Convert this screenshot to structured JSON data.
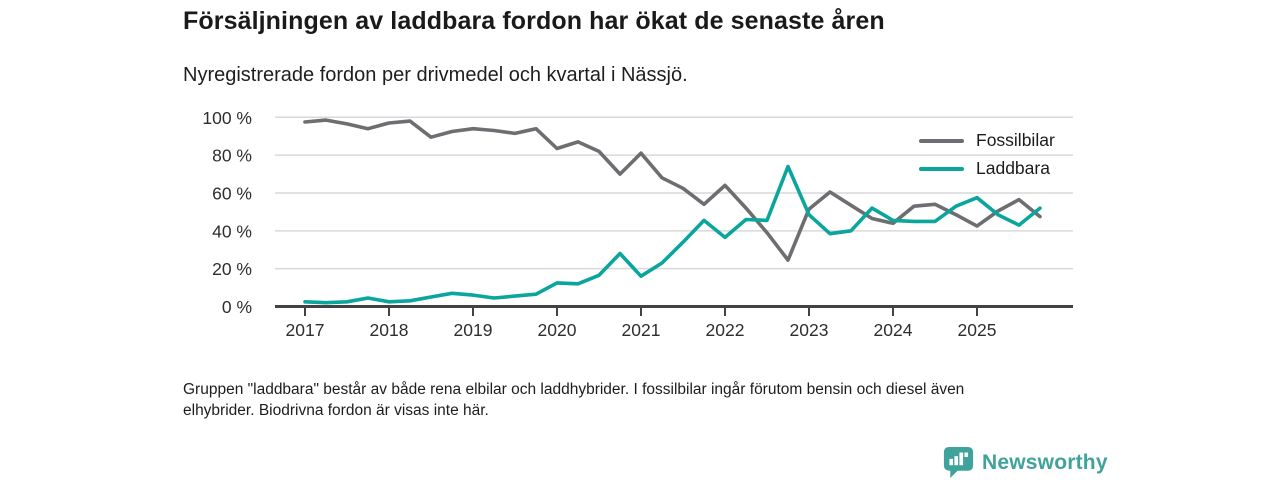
{
  "header": {
    "title": "Försäljningen av laddbara fordon har ökat de senaste åren",
    "subtitle": "Nyregistrerade fordon per drivmedel och kvartal i Nässjö."
  },
  "chart_data": {
    "type": "line",
    "title": "Försäljningen av laddbara fordon har ökat de senaste åren",
    "subtitle": "Nyregistrerade fordon per drivmedel och kvartal i Nässjö.",
    "x_unit": "quarter",
    "categories": [
      "2017Q1",
      "2017Q2",
      "2017Q3",
      "2017Q4",
      "2018Q1",
      "2018Q2",
      "2018Q3",
      "2018Q4",
      "2019Q1",
      "2019Q2",
      "2019Q3",
      "2019Q4",
      "2020Q1",
      "2020Q2",
      "2020Q3",
      "2020Q4",
      "2021Q1",
      "2021Q2",
      "2021Q3",
      "2021Q4",
      "2022Q1",
      "2022Q2",
      "2022Q3",
      "2022Q4",
      "2023Q1",
      "2023Q2",
      "2023Q3",
      "2023Q4",
      "2024Q1",
      "2024Q2",
      "2024Q3",
      "2024Q4",
      "2025Q1",
      "2025Q2",
      "2025Q3",
      "2025Q4"
    ],
    "series": [
      {
        "name": "Fossilbilar",
        "color": "#6d6e71",
        "values": [
          97.5,
          98.5,
          96.5,
          94,
          97,
          98,
          89.5,
          92.5,
          94,
          93,
          91.5,
          94,
          83.5,
          87,
          82,
          70,
          81,
          68,
          62.5,
          54,
          64,
          52,
          39,
          24.5,
          51.5,
          60.5,
          53.5,
          46.5,
          44,
          53,
          54,
          48.5,
          42.5,
          50.5,
          56.5,
          47.5
        ]
      },
      {
        "name": "Laddbara",
        "color": "#0aa59d",
        "values": [
          2.5,
          2,
          2.5,
          4.5,
          2.5,
          3,
          5,
          7,
          6,
          4.5,
          5.5,
          6.5,
          12.5,
          12,
          16.5,
          28,
          16,
          23,
          34,
          45.5,
          36.5,
          46,
          45.5,
          74,
          48.5,
          38.5,
          40,
          52,
          45.5,
          45,
          45,
          53,
          57.5,
          48.5,
          43,
          52
        ]
      }
    ],
    "x_tick_labels": [
      "2017",
      "2018",
      "2019",
      "2020",
      "2021",
      "2022",
      "2023",
      "2024",
      "2025"
    ],
    "y_ticks": [
      0,
      20,
      40,
      60,
      80,
      100
    ],
    "y_tick_suffix": " %",
    "ylim": [
      0,
      100
    ],
    "grid": true,
    "legend_position": "right",
    "axis_color": "#424242",
    "grid_color": "#d9d9d9",
    "tick_label_color": "#2e2e2e"
  },
  "footnote": {
    "lines": {
      "0": "Gruppen \"laddbara\" består av både rena elbilar och laddhybrider. I fossilbilar ingår förutom bensin och diesel även",
      "1": "elhybrider. Biodrivna fordon är visas inte här."
    }
  },
  "branding": {
    "logo_text": "Newsworthy",
    "logo_color": "#3fa39b",
    "logo_icon": "bar-chart-pin-badge"
  }
}
